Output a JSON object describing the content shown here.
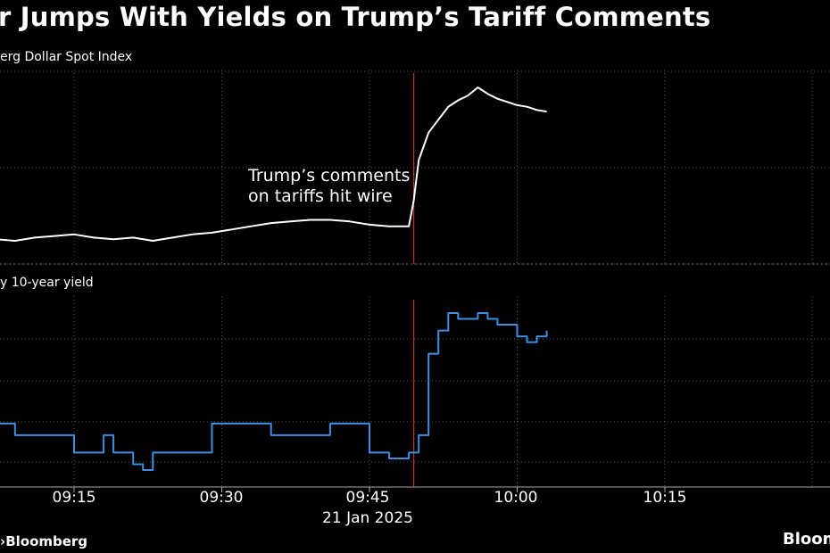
{
  "title": "r Jumps With Yields on Trump’s Tariff Comments",
  "source": "Bloomberg",
  "brand": "Bloom",
  "chart_data": [
    {
      "type": "line",
      "title": "erg Dollar Spot Index",
      "series": [
        {
          "name": "",
          "color": "#ffffff",
          "x": [
            "09:05",
            "09:07",
            "09:09",
            "09:11",
            "09:13",
            "09:15",
            "09:17",
            "09:19",
            "09:21",
            "09:23",
            "09:25",
            "09:27",
            "09:29",
            "09:31",
            "09:33",
            "09:35",
            "09:37",
            "09:39",
            "09:41",
            "09:43",
            "09:45",
            "09:47",
            "09:49",
            "09:49.5",
            "09:50",
            "09:51",
            "09:52",
            "09:53",
            "09:54",
            "09:55",
            "09:56",
            "09:57",
            "09:58",
            "09:59",
            "10:00",
            "10:01",
            "10:02",
            "10:03"
          ],
          "values": [
            0.05,
            0.06,
            0.05,
            0.07,
            0.08,
            0.09,
            0.07,
            0.06,
            0.07,
            0.05,
            0.07,
            0.09,
            0.1,
            0.12,
            0.14,
            0.16,
            0.17,
            0.18,
            0.18,
            0.17,
            0.15,
            0.14,
            0.14,
            0.3,
            0.55,
            0.72,
            0.8,
            0.88,
            0.92,
            0.95,
            1.0,
            0.96,
            0.93,
            0.91,
            0.89,
            0.88,
            0.86,
            0.85
          ]
        }
      ],
      "xlim": [
        "09:05",
        "10:30"
      ]
    },
    {
      "type": "line",
      "title": "y 10-year yield",
      "series": [
        {
          "name": "",
          "color": "#3d8ee0",
          "x": [
            "09:05",
            "09:06",
            "09:07",
            "09:09",
            "09:11",
            "09:13",
            "09:15",
            "09:17",
            "09:18",
            "09:19",
            "09:21",
            "09:22",
            "09:23",
            "09:25",
            "09:27",
            "09:29",
            "09:31",
            "09:33",
            "09:35",
            "09:37",
            "09:39",
            "09:41",
            "09:43",
            "09:45",
            "09:46",
            "09:47",
            "09:48",
            "09:49",
            "09:50",
            "09:51",
            "09:52",
            "09:53",
            "09:54",
            "09:55",
            "09:56",
            "09:57",
            "09:58",
            "09:59",
            "10:00",
            "10:01",
            "10:02",
            "10:03"
          ],
          "values": [
            4.6,
            4.62,
            4.6,
            4.58,
            4.58,
            4.58,
            4.55,
            4.55,
            4.58,
            4.55,
            4.53,
            4.52,
            4.55,
            4.55,
            4.55,
            4.6,
            4.6,
            4.6,
            4.58,
            4.58,
            4.58,
            4.6,
            4.6,
            4.55,
            4.55,
            4.54,
            4.54,
            4.55,
            4.58,
            4.72,
            4.76,
            4.79,
            4.78,
            4.78,
            4.79,
            4.78,
            4.77,
            4.77,
            4.75,
            4.74,
            4.75,
            4.76
          ]
        }
      ],
      "xlim": [
        "09:05",
        "10:30"
      ]
    }
  ],
  "annotation": {
    "line1": "Trump’s comments",
    "line2": "on tariffs hit wire",
    "at": "09:49.5",
    "color": "#c0392b"
  },
  "x_axis": {
    "ticks": [
      "09:15",
      "09:30",
      "09:45",
      "10:00",
      "10:15"
    ],
    "date_label": "21 Jan 2025"
  }
}
